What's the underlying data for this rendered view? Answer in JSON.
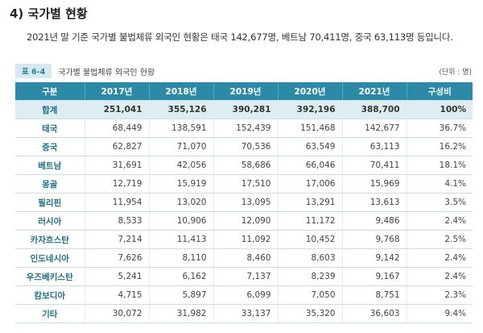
{
  "section": {
    "title": "4) 국가별 현황",
    "intro": "2021년 말 기준 국가별 불법체류 외국인 현황은 태국 142,677명, 베트남 70,411명, 중국 63,113명 등입니다."
  },
  "table": {
    "badge": "표 6-4",
    "caption": "국가별 불법체류 외국인 현황",
    "unit": "(단위 : 명)",
    "headers": [
      "구분",
      "2017년",
      "2018년",
      "2019년",
      "2020년",
      "2021년",
      "구성비"
    ],
    "rows": [
      [
        "합계",
        "251,041",
        "355,126",
        "390,281",
        "392,196",
        "388,700",
        "100%"
      ],
      [
        "태국",
        "68,449",
        "138,591",
        "152,439",
        "151,468",
        "142,677",
        "36.7%"
      ],
      [
        "중국",
        "62,827",
        "71,070",
        "70,536",
        "63,549",
        "63,113",
        "16.2%"
      ],
      [
        "베트남",
        "31,691",
        "42,056",
        "58,686",
        "66,046",
        "70,411",
        "18.1%"
      ],
      [
        "몽골",
        "12,719",
        "15,919",
        "17,510",
        "17,006",
        "15,969",
        "4.1%"
      ],
      [
        "필리핀",
        "11,954",
        "13,020",
        "13,095",
        "13,291",
        "13,613",
        "3.5%"
      ],
      [
        "러시아",
        "8,533",
        "10,906",
        "12,090",
        "11,172",
        "9,486",
        "2.4%"
      ],
      [
        "카자흐스탄",
        "7,214",
        "11,413",
        "11,092",
        "10,452",
        "9,768",
        "2.5%"
      ],
      [
        "인도네시아",
        "7,626",
        "8,110",
        "8,460",
        "8,603",
        "9,142",
        "2.4%"
      ],
      [
        "우즈베키스탄",
        "5,241",
        "6,162",
        "7,137",
        "8,239",
        "9,167",
        "2.4%"
      ],
      [
        "캄보디아",
        "4,715",
        "5,897",
        "6,099",
        "7,050",
        "8,751",
        "2.3%"
      ],
      [
        "기타",
        "30,072",
        "31,982",
        "33,137",
        "35,320",
        "36,603",
        "9.4%"
      ]
    ]
  }
}
